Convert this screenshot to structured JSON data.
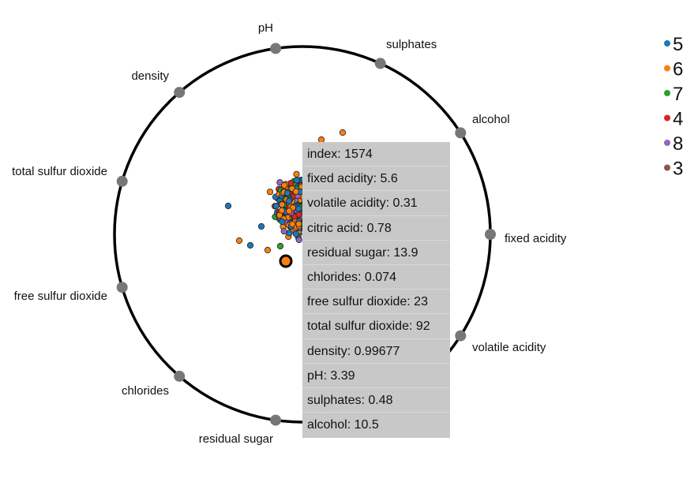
{
  "chart_data": {
    "type": "scatter",
    "title": "",
    "projection": "radviz",
    "anchors": [
      "fixed acidity",
      "volatile acidity",
      "citric acid",
      "residual sugar",
      "chlorides",
      "free sulfur dioxide",
      "total sulfur dioxide",
      "density",
      "pH",
      "sulphates",
      "alcohol"
    ],
    "visible_anchor_labels": [
      "fixed acidity",
      "volatile acidity",
      "residual sugar",
      "chlorides",
      "free sulfur dioxide",
      "total sulfur dioxide",
      "density",
      "pH",
      "sulphates",
      "alcohol"
    ],
    "legend": {
      "position": "top-right",
      "entries": [
        {
          "label": "5",
          "color": "#1f77b4"
        },
        {
          "label": "6",
          "color": "#ff7f0e"
        },
        {
          "label": "7",
          "color": "#2ca02c"
        },
        {
          "label": "4",
          "color": "#d62728"
        },
        {
          "label": "8",
          "color": "#9467bd"
        },
        {
          "label": "3",
          "color": "#8c564b"
        }
      ]
    },
    "highlighted_point": {
      "class": "6",
      "color": "#ff7f0e",
      "tooltip": [
        "index: 1574",
        "fixed acidity: 5.6",
        "volatile acidity: 0.31",
        "citric acid: 0.78",
        "residual sugar: 13.9",
        "chlorides: 0.074",
        "free sulfur dioxide: 23",
        "total sulfur dioxide: 92",
        "density: 0.99677",
        "pH: 3.39",
        "sulphates: 0.48",
        "alcohol: 10.5"
      ]
    }
  },
  "colors": {
    "anchor": "#777777",
    "circle": "#000000",
    "tooltip_bg": "#c8c8c8"
  }
}
